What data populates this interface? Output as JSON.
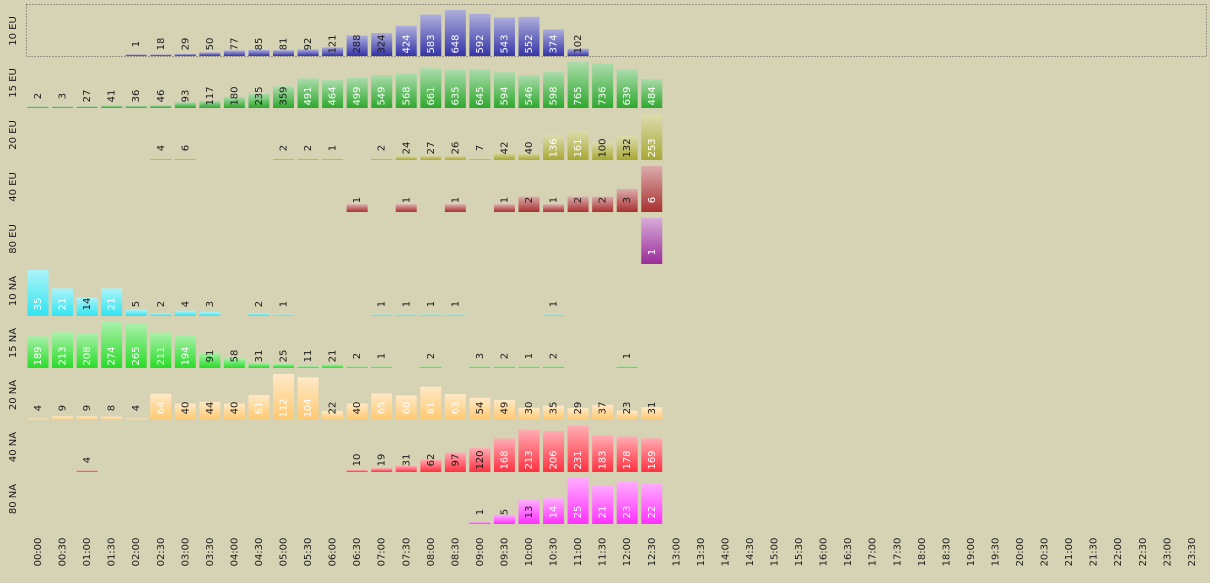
{
  "chart_data": {
    "type": "bar",
    "categories": [
      "00:00",
      "00:30",
      "01:00",
      "01:30",
      "02:00",
      "02:30",
      "03:00",
      "03:30",
      "04:00",
      "04:30",
      "05:00",
      "05:30",
      "06:00",
      "06:30",
      "07:00",
      "07:30",
      "08:00",
      "08:30",
      "09:00",
      "09:30",
      "10:00",
      "10:30",
      "11:00",
      "11:30",
      "12:00",
      "12:30",
      "13:00",
      "13:30",
      "14:00",
      "14:30",
      "15:00",
      "15:30",
      "16:00",
      "16:30",
      "17:00",
      "17:30",
      "18:00",
      "18:30",
      "19:00",
      "19:30",
      "20:00",
      "20:30",
      "21:00",
      "21:30",
      "22:00",
      "22:30",
      "23:00",
      "23:30"
    ],
    "series": [
      {
        "name": "10 EU",
        "color": "#3434a8",
        "values": [
          null,
          null,
          null,
          null,
          1,
          18,
          29,
          50,
          77,
          85,
          81,
          92,
          121,
          288,
          324,
          424,
          583,
          648,
          592,
          543,
          552,
          374,
          102,
          null,
          null,
          null,
          null,
          null,
          null,
          null,
          null,
          null,
          null,
          null,
          null,
          null,
          null,
          null,
          null,
          null,
          null,
          null,
          null,
          null,
          null,
          null,
          null,
          null
        ]
      },
      {
        "name": "15 EU",
        "color": "#2ea82e",
        "values": [
          2,
          3,
          27,
          41,
          36,
          46,
          93,
          117,
          180,
          235,
          359,
          491,
          464,
          499,
          549,
          568,
          661,
          635,
          645,
          594,
          546,
          598,
          765,
          736,
          639,
          484,
          null,
          null,
          null,
          null,
          null,
          null,
          null,
          null,
          null,
          null,
          null,
          null,
          null,
          null,
          null,
          null,
          null,
          null,
          null,
          null,
          null,
          null
        ]
      },
      {
        "name": "20 EU",
        "color": "#a8a834",
        "values": [
          null,
          null,
          null,
          null,
          null,
          4,
          6,
          null,
          null,
          null,
          2,
          2,
          1,
          null,
          2,
          24,
          27,
          26,
          7,
          42,
          40,
          136,
          161,
          100,
          132,
          253,
          null,
          null,
          null,
          null,
          null,
          null,
          null,
          null,
          null,
          null,
          null,
          null,
          null,
          null,
          null,
          null,
          null,
          null,
          null,
          null,
          null,
          null
        ]
      },
      {
        "name": "40 EU",
        "color": "#a83030",
        "values": [
          null,
          null,
          null,
          null,
          null,
          null,
          null,
          null,
          null,
          null,
          null,
          null,
          null,
          1,
          null,
          1,
          null,
          1,
          null,
          1,
          2,
          1,
          2,
          2,
          3,
          6,
          null,
          null,
          null,
          null,
          null,
          null,
          null,
          null,
          null,
          null,
          null,
          null,
          null,
          null,
          null,
          null,
          null,
          null,
          null,
          null,
          null,
          null
        ]
      },
      {
        "name": "80 EU",
        "color": "#9a2c9a",
        "values": [
          null,
          null,
          null,
          null,
          null,
          null,
          null,
          null,
          null,
          null,
          null,
          null,
          null,
          null,
          null,
          null,
          null,
          null,
          null,
          null,
          null,
          null,
          null,
          null,
          null,
          1,
          null,
          null,
          null,
          null,
          null,
          null,
          null,
          null,
          null,
          null,
          null,
          null,
          null,
          null,
          null,
          null,
          null,
          null,
          null,
          null,
          null,
          null
        ]
      },
      {
        "name": "10 NA",
        "color": "#30e4f0",
        "values": [
          35,
          21,
          14,
          21,
          5,
          2,
          4,
          3,
          null,
          2,
          1,
          null,
          null,
          null,
          1,
          1,
          1,
          1,
          null,
          null,
          null,
          1,
          null,
          null,
          null,
          null,
          null,
          null,
          null,
          null,
          null,
          null,
          null,
          null,
          null,
          null,
          null,
          null,
          null,
          null,
          null,
          null,
          null,
          null,
          null,
          null,
          null,
          null
        ]
      },
      {
        "name": "15 NA",
        "color": "#28dc28",
        "values": [
          189,
          213,
          208,
          274,
          265,
          211,
          194,
          91,
          58,
          31,
          25,
          11,
          21,
          2,
          1,
          null,
          2,
          null,
          3,
          2,
          1,
          2,
          null,
          null,
          1,
          null,
          null,
          null,
          null,
          null,
          null,
          null,
          null,
          null,
          null,
          null,
          null,
          null,
          null,
          null,
          null,
          null,
          null,
          null,
          null,
          null,
          null,
          null
        ]
      },
      {
        "name": "20 NA",
        "color": "#ffc870",
        "values": [
          4,
          9,
          9,
          8,
          4,
          64,
          40,
          44,
          40,
          61,
          112,
          104,
          22,
          40,
          65,
          60,
          81,
          63,
          54,
          49,
          30,
          35,
          29,
          37,
          23,
          31,
          null,
          null,
          null,
          null,
          null,
          null,
          null,
          null,
          null,
          null,
          null,
          null,
          null,
          null,
          null,
          null,
          null,
          null,
          null,
          null,
          null,
          null
        ]
      },
      {
        "name": "40 NA",
        "color": "#ff3040",
        "values": [
          null,
          null,
          4,
          null,
          null,
          null,
          null,
          null,
          null,
          null,
          null,
          null,
          null,
          10,
          19,
          31,
          62,
          97,
          120,
          168,
          213,
          206,
          231,
          183,
          178,
          169,
          null,
          null,
          null,
          null,
          null,
          null,
          null,
          null,
          null,
          null,
          null,
          null,
          null,
          null,
          null,
          null,
          null,
          null,
          null,
          null,
          null,
          null
        ]
      },
      {
        "name": "80 NA",
        "color": "#ff30ff",
        "values": [
          null,
          null,
          null,
          null,
          null,
          null,
          null,
          null,
          null,
          null,
          null,
          null,
          null,
          null,
          null,
          null,
          null,
          null,
          1,
          5,
          13,
          14,
          25,
          21,
          23,
          22,
          null,
          null,
          null,
          null,
          null,
          null,
          null,
          null,
          null,
          null,
          null,
          null,
          null,
          null,
          null,
          null,
          null,
          null,
          null,
          null,
          null,
          null
        ]
      }
    ]
  }
}
